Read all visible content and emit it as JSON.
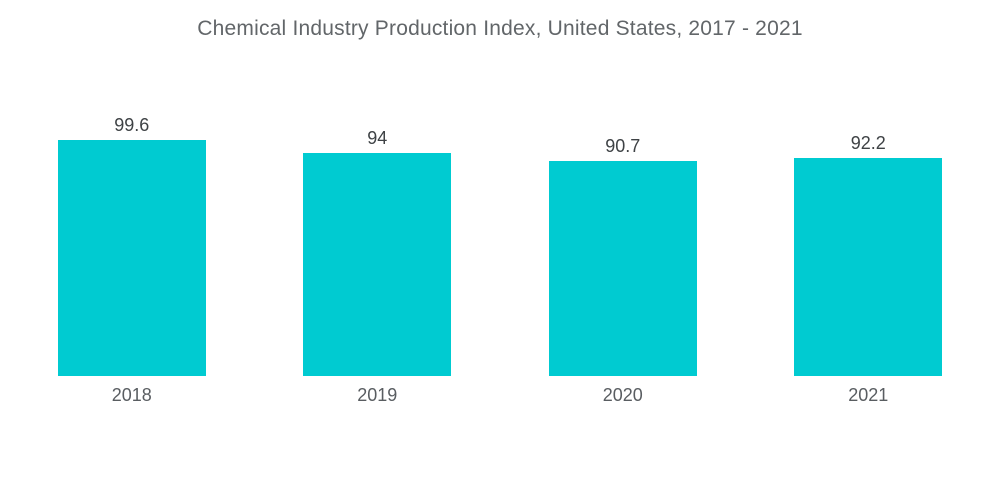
{
  "chart_data": {
    "type": "bar",
    "title": "Chemical Industry Production Index, United States, 2017 - 2021",
    "categories": [
      "2018",
      "2019",
      "2020",
      "2021"
    ],
    "values": [
      99.6,
      94,
      90.7,
      92.2
    ],
    "value_labels": [
      "99.6",
      "94",
      "90.7",
      "92.2"
    ],
    "xlabel": "",
    "ylabel": "",
    "ylim": [
      0,
      105
    ],
    "baseline": 0,
    "grid": false,
    "legend": false,
    "orientation": "vertical",
    "bar_color": "#00CBD1",
    "title_color": "#626669",
    "value_label_color": "#3E4245",
    "category_label_color": "#595D61",
    "background": "#FFFFFF"
  }
}
